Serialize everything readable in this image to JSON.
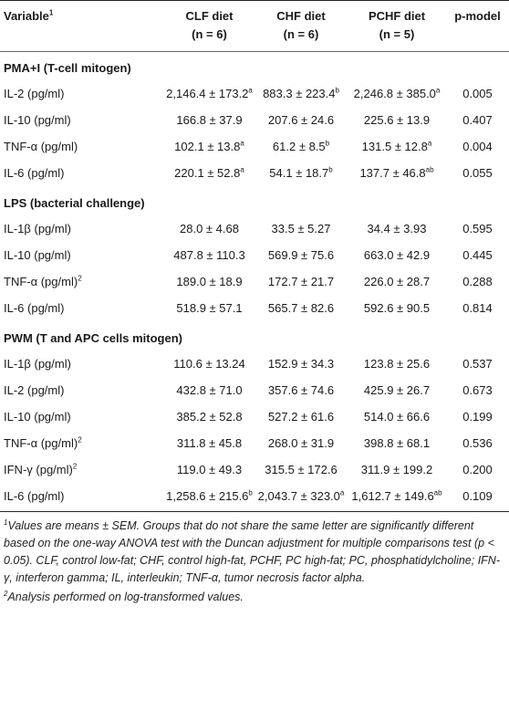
{
  "header": {
    "variable": "Variable",
    "variable_sup": "1",
    "clf_line1": "CLF diet",
    "clf_line2": "(n = 6)",
    "chf_line1": "CHF diet",
    "chf_line2": "(n = 6)",
    "pchf_line1": "PCHF diet",
    "pchf_line2": "(n = 5)",
    "pmodel": "p-model"
  },
  "sections": [
    {
      "title": "PMA+I (T-cell mitogen)",
      "rows": [
        {
          "var": "IL-2 (pg/ml)",
          "var_sup": "",
          "clf": "2,146.4 ± 173.2",
          "clf_sup": "a",
          "chf": "883.3 ± 223.4",
          "chf_sup": "b",
          "pchf": "2,246.8 ± 385.0",
          "pchf_sup": "a",
          "p": "0.005"
        },
        {
          "var": "IL-10 (pg/ml)",
          "var_sup": "",
          "clf": "166.8 ± 37.9",
          "clf_sup": "",
          "chf": "207.6 ± 24.6",
          "chf_sup": "",
          "pchf": "225.6 ± 13.9",
          "pchf_sup": "",
          "p": "0.407"
        },
        {
          "var": "TNF-α (pg/ml)",
          "var_sup": "",
          "clf": "102.1 ± 13.8",
          "clf_sup": "a",
          "chf": "61.2 ± 8.5",
          "chf_sup": "b",
          "pchf": "131.5 ± 12.8",
          "pchf_sup": "a",
          "p": "0.004"
        },
        {
          "var": "IL-6 (pg/ml)",
          "var_sup": "",
          "clf": "220.1 ± 52.8",
          "clf_sup": "a",
          "chf": "54.1 ± 18.7",
          "chf_sup": "b",
          "pchf": "137.7 ± 46.8",
          "pchf_sup": "ab",
          "p": "0.055"
        }
      ]
    },
    {
      "title": "LPS (bacterial challenge)",
      "rows": [
        {
          "var": "IL-1β (pg/ml)",
          "var_sup": "",
          "clf": "28.0 ± 4.68",
          "clf_sup": "",
          "chf": "33.5 ± 5.27",
          "chf_sup": "",
          "pchf": "34.4 ± 3.93",
          "pchf_sup": "",
          "p": "0.595"
        },
        {
          "var": "IL-10 (pg/ml)",
          "var_sup": "",
          "clf": "487.8 ± 110.3",
          "clf_sup": "",
          "chf": "569.9 ± 75.6",
          "chf_sup": "",
          "pchf": "663.0 ± 42.9",
          "pchf_sup": "",
          "p": "0.445"
        },
        {
          "var": "TNF-α (pg/ml)",
          "var_sup": "2",
          "clf": "189.0 ± 18.9",
          "clf_sup": "",
          "chf": "172.7 ± 21.7",
          "chf_sup": "",
          "pchf": "226.0 ± 28.7",
          "pchf_sup": "",
          "p": "0.288"
        },
        {
          "var": "IL-6 (pg/ml)",
          "var_sup": "",
          "clf": "518.9 ± 57.1",
          "clf_sup": "",
          "chf": "565.7 ± 82.6",
          "chf_sup": "",
          "pchf": "592.6 ± 90.5",
          "pchf_sup": "",
          "p": "0.814"
        }
      ]
    },
    {
      "title": "PWM (T and APC cells mitogen)",
      "rows": [
        {
          "var": "IL-1β (pg/ml)",
          "var_sup": "",
          "clf": "110.6 ± 13.24",
          "clf_sup": "",
          "chf": "152.9 ± 34.3",
          "chf_sup": "",
          "pchf": "123.8 ± 25.6",
          "pchf_sup": "",
          "p": "0.537"
        },
        {
          "var": "IL-2 (pg/ml)",
          "var_sup": "",
          "clf": "432.8 ± 71.0",
          "clf_sup": "",
          "chf": "357.6 ± 74.6",
          "chf_sup": "",
          "pchf": "425.9 ± 26.7",
          "pchf_sup": "",
          "p": "0.673"
        },
        {
          "var": "IL-10 (pg/ml)",
          "var_sup": "",
          "clf": "385.2 ± 52.8",
          "clf_sup": "",
          "chf": "527.2 ± 61.6",
          "chf_sup": "",
          "pchf": "514.0 ± 66.6",
          "pchf_sup": "",
          "p": "0.199"
        },
        {
          "var": "TNF-α (pg/ml)",
          "var_sup": "2",
          "clf": "311.8 ± 45.8",
          "clf_sup": "",
          "chf": "268.0 ± 31.9",
          "chf_sup": "",
          "pchf": "398.8 ± 68.1",
          "pchf_sup": "",
          "p": "0.536"
        },
        {
          "var": "IFN-γ (pg/ml)",
          "var_sup": "2",
          "clf": "119.0 ± 49.3",
          "clf_sup": "",
          "chf": "315.5 ± 172.6",
          "chf_sup": "",
          "pchf": "311.9 ± 199.2",
          "pchf_sup": "",
          "p": "0.200"
        },
        {
          "var": "IL-6 (pg/ml)",
          "var_sup": "",
          "clf": "1,258.6 ± 215.6",
          "clf_sup": "b",
          "chf": "2,043.7 ± 323.0",
          "chf_sup": "a",
          "pchf": "1,612.7 ± 149.6",
          "pchf_sup": "ab",
          "p": "0.109"
        }
      ]
    }
  ],
  "footnotes": {
    "f1_sup": "1",
    "f1": "Values are means ± SEM. Groups that do not share the same letter are significantly different based on the one-way ANOVA test with the Duncan adjustment for multiple comparisons test (p < 0.05). CLF, control low-fat; CHF, control high-fat, PCHF, PC high-fat; PC, phosphatidylcholine; IFN-γ, interferon gamma; IL, interleukin; TNF-α, tumor necrosis factor alpha.",
    "f2_sup": "2",
    "f2": "Analysis performed on log-transformed values."
  }
}
